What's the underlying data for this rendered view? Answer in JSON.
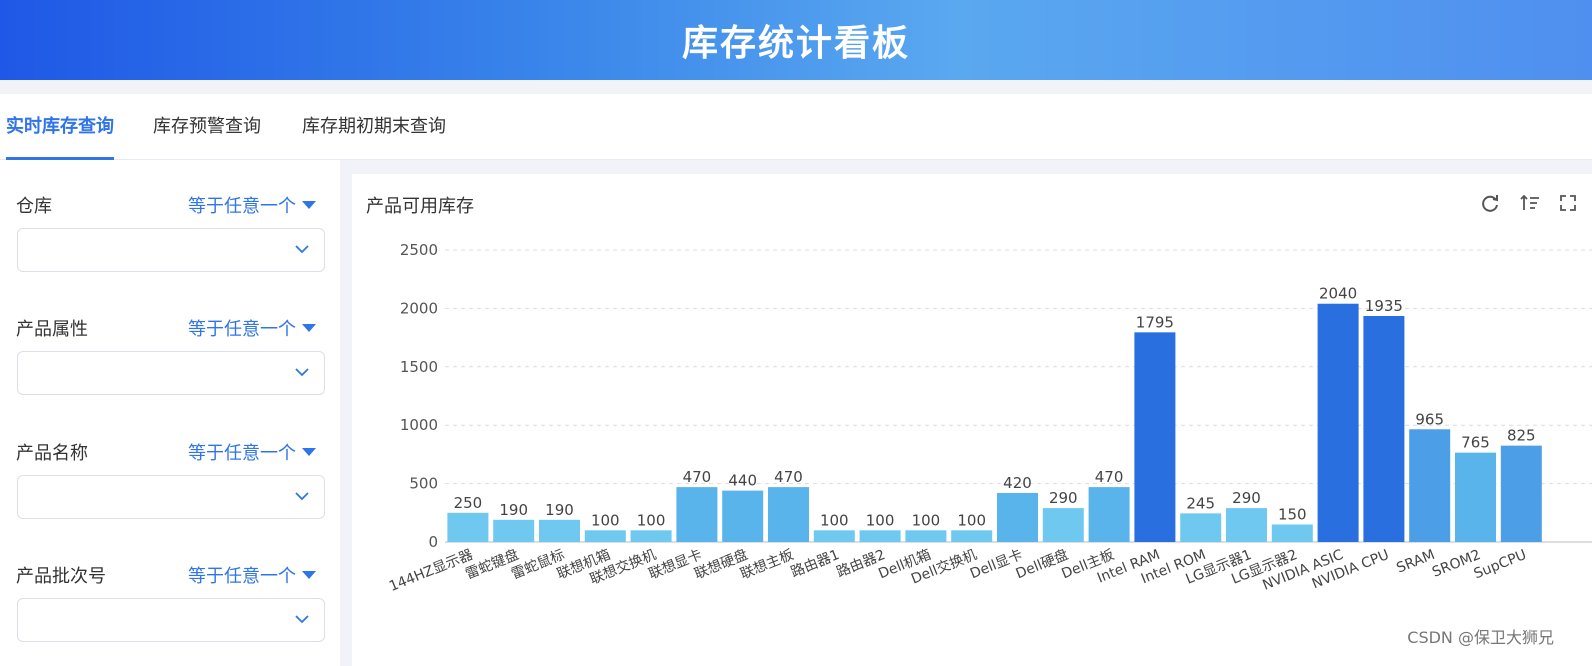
{
  "header": {
    "title": "库存统计看板"
  },
  "tabs": [
    {
      "label": "实时库存查询",
      "active": true
    },
    {
      "label": "库存预警查询",
      "active": false
    },
    {
      "label": "库存期初期末查询",
      "active": false
    }
  ],
  "filters": [
    {
      "label": "仓库",
      "operator": "等于任意一个",
      "value": ""
    },
    {
      "label": "产品属性",
      "operator": "等于任意一个",
      "value": ""
    },
    {
      "label": "产品名称",
      "operator": "等于任意一个",
      "value": ""
    },
    {
      "label": "产品批次号",
      "operator": "等于任意一个",
      "value": ""
    }
  ],
  "panel": {
    "title": "产品可用库存",
    "tools": [
      "refresh-icon",
      "sort-icon",
      "fullscreen-icon"
    ]
  },
  "chart_data": {
    "type": "bar",
    "categories": [
      "144HZ显示器",
      "雷蛇键盘",
      "雷蛇鼠标",
      "联想机箱",
      "联想交换机",
      "联想显卡",
      "联想硬盘",
      "联想主板",
      "路由器1",
      "路由器2",
      "Dell机箱",
      "Dell交换机",
      "Dell显卡",
      "Dell硬盘",
      "Dell主板",
      "Intel RAM",
      "Intel ROM",
      "LG显示器1",
      "LG显示器2",
      "NVIDIA ASIC",
      "NVIDIA CPU",
      "SRAM",
      "SROM2",
      "SupCPU"
    ],
    "values": [
      250,
      190,
      190,
      100,
      100,
      470,
      440,
      470,
      100,
      100,
      100,
      100,
      420,
      290,
      470,
      1795,
      245,
      290,
      150,
      2040,
      1935,
      965,
      765,
      825
    ],
    "yticks": [
      0,
      500,
      1000,
      1500,
      2000,
      2500
    ],
    "ylim": [
      0,
      2500
    ],
    "grid": true,
    "colors": {
      "low": "#6ec8f0",
      "mid": "#5ab4ec",
      "high": "#4c9ee6",
      "top": "#2a6fe0"
    }
  },
  "watermark": "CSDN @保卫大狮兄"
}
